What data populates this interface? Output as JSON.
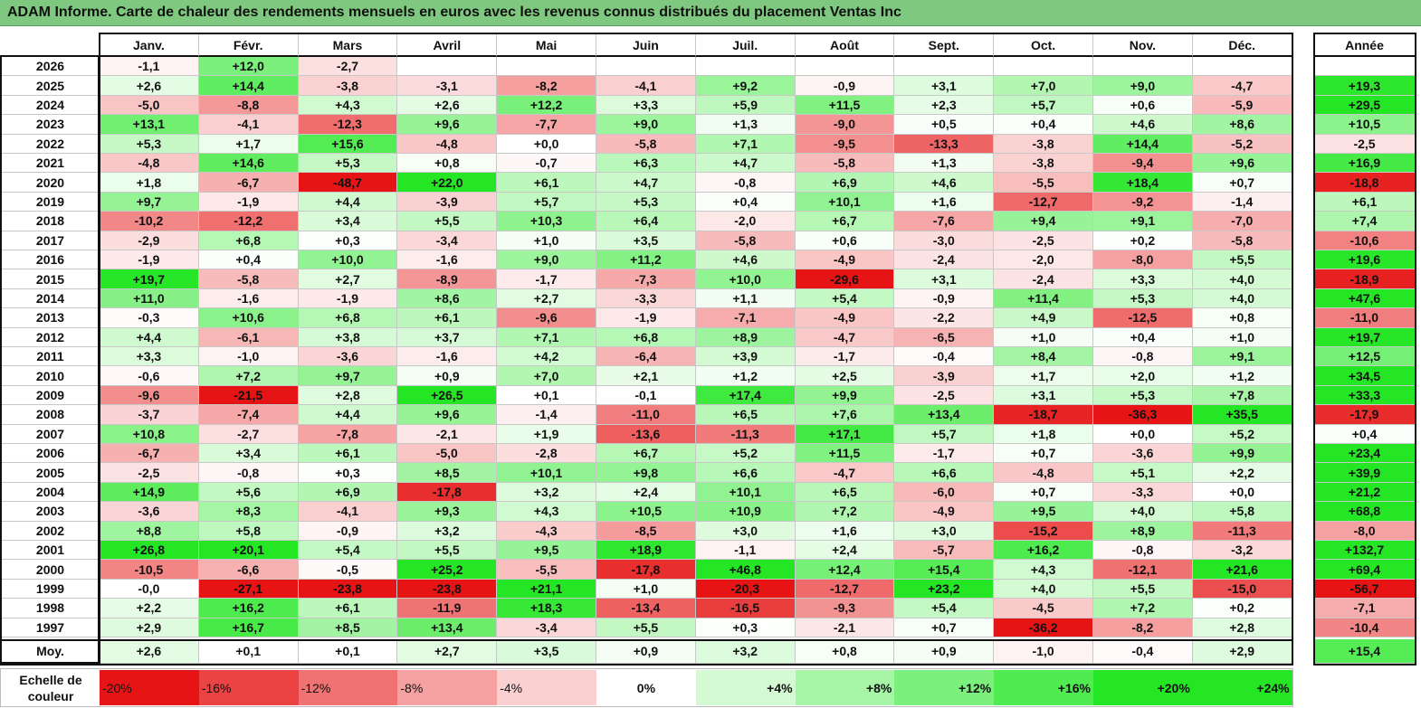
{
  "title": "ADAM Informe. Carte de chaleur des rendements mensuels en euros avec les revenus connus distribués du placement Ventas Inc",
  "chart_data": {
    "type": "heatmap",
    "months": [
      "Janv.",
      "Févr.",
      "Mars",
      "Avril",
      "Mai",
      "Juin",
      "Juil.",
      "Août",
      "Sept.",
      "Oct.",
      "Nov.",
      "Déc."
    ],
    "year_header": "Année",
    "avg_label": "Moy.",
    "rows": [
      {
        "year": "2026",
        "values": [
          "-1,1",
          "+12,0",
          "-2,7",
          "",
          "",
          "",
          "",
          "",
          "",
          "",
          "",
          ""
        ],
        "annual": ""
      },
      {
        "year": "2025",
        "values": [
          "+2,6",
          "+14,4",
          "-3,8",
          "-3,1",
          "-8,2",
          "-4,1",
          "+9,2",
          "-0,9",
          "+3,1",
          "+7,0",
          "+9,0",
          "-4,7"
        ],
        "annual": "+19,3"
      },
      {
        "year": "2024",
        "values": [
          "-5,0",
          "-8,8",
          "+4,3",
          "+2,6",
          "+12,2",
          "+3,3",
          "+5,9",
          "+11,5",
          "+2,3",
          "+5,7",
          "+0,6",
          "-5,9"
        ],
        "annual": "+29,5"
      },
      {
        "year": "2023",
        "values": [
          "+13,1",
          "-4,1",
          "-12,3",
          "+9,6",
          "-7,7",
          "+9,0",
          "+1,3",
          "-9,0",
          "+0,5",
          "+0,4",
          "+4,6",
          "+8,6"
        ],
        "annual": "+10,5"
      },
      {
        "year": "2022",
        "values": [
          "+5,3",
          "+1,7",
          "+15,6",
          "-4,8",
          "+0,0",
          "-5,8",
          "+7,1",
          "-9,5",
          "-13,3",
          "-3,8",
          "+14,4",
          "-5,2"
        ],
        "annual": "-2,5"
      },
      {
        "year": "2021",
        "values": [
          "-4,8",
          "+14,6",
          "+5,3",
          "+0,8",
          "-0,7",
          "+6,3",
          "+4,7",
          "-5,8",
          "+1,3",
          "-3,8",
          "-9,4",
          "+9,6"
        ],
        "annual": "+16,9"
      },
      {
        "year": "2020",
        "values": [
          "+1,8",
          "-6,7",
          "-48,7",
          "+22,0",
          "+6,1",
          "+4,7",
          "-0,8",
          "+6,9",
          "+4,6",
          "-5,5",
          "+18,4",
          "+0,7"
        ],
        "annual": "-18,8"
      },
      {
        "year": "2019",
        "values": [
          "+9,7",
          "-1,9",
          "+4,4",
          "-3,9",
          "+5,7",
          "+5,3",
          "+0,4",
          "+10,1",
          "+1,6",
          "-12,7",
          "-9,2",
          "-1,4"
        ],
        "annual": "+6,1"
      },
      {
        "year": "2018",
        "values": [
          "-10,2",
          "-12,2",
          "+3,4",
          "+5,5",
          "+10,3",
          "+6,4",
          "-2,0",
          "+6,7",
          "-7,6",
          "+9,4",
          "+9,1",
          "-7,0"
        ],
        "annual": "+7,4"
      },
      {
        "year": "2017",
        "values": [
          "-2,9",
          "+6,8",
          "+0,3",
          "-3,4",
          "+1,0",
          "+3,5",
          "-5,8",
          "+0,6",
          "-3,0",
          "-2,5",
          "+0,2",
          "-5,8"
        ],
        "annual": "-10,6"
      },
      {
        "year": "2016",
        "values": [
          "-1,9",
          "+0,4",
          "+10,0",
          "-1,6",
          "+9,0",
          "+11,2",
          "+4,6",
          "-4,9",
          "-2,4",
          "-2,0",
          "-8,0",
          "+5,5"
        ],
        "annual": "+19,6"
      },
      {
        "year": "2015",
        "values": [
          "+19,7",
          "-5,8",
          "+2,7",
          "-8,9",
          "-1,7",
          "-7,3",
          "+10,0",
          "-29,6",
          "+3,1",
          "-2,4",
          "+3,3",
          "+4,0"
        ],
        "annual": "-18,9"
      },
      {
        "year": "2014",
        "values": [
          "+11,0",
          "-1,6",
          "-1,9",
          "+8,6",
          "+2,7",
          "-3,3",
          "+1,1",
          "+5,4",
          "-0,9",
          "+11,4",
          "+5,3",
          "+4,0"
        ],
        "annual": "+47,6"
      },
      {
        "year": "2013",
        "values": [
          "-0,3",
          "+10,6",
          "+6,8",
          "+6,1",
          "-9,6",
          "-1,9",
          "-7,1",
          "-4,9",
          "-2,2",
          "+4,9",
          "-12,5",
          "+0,8"
        ],
        "annual": "-11,0"
      },
      {
        "year": "2012",
        "values": [
          "+4,4",
          "-6,1",
          "+3,8",
          "+3,7",
          "+7,1",
          "+6,8",
          "+8,9",
          "-4,7",
          "-6,5",
          "+1,0",
          "+0,4",
          "+1,0"
        ],
        "annual": "+19,7"
      },
      {
        "year": "2011",
        "values": [
          "+3,3",
          "-1,0",
          "-3,6",
          "-1,6",
          "+4,2",
          "-6,4",
          "+3,9",
          "-1,7",
          "-0,4",
          "+8,4",
          "-0,8",
          "+9,1"
        ],
        "annual": "+12,5"
      },
      {
        "year": "2010",
        "values": [
          "-0,6",
          "+7,2",
          "+9,7",
          "+0,9",
          "+7,0",
          "+2,1",
          "+1,2",
          "+2,5",
          "-3,9",
          "+1,7",
          "+2,0",
          "+1,2"
        ],
        "annual": "+34,5"
      },
      {
        "year": "2009",
        "values": [
          "-9,6",
          "-21,5",
          "+2,8",
          "+26,5",
          "+0,1",
          "-0,1",
          "+17,4",
          "+9,9",
          "-2,5",
          "+3,1",
          "+5,3",
          "+7,8"
        ],
        "annual": "+33,3"
      },
      {
        "year": "2008",
        "values": [
          "-3,7",
          "-7,4",
          "+4,4",
          "+9,6",
          "-1,4",
          "-11,0",
          "+6,5",
          "+7,6",
          "+13,4",
          "-18,7",
          "-36,3",
          "+35,5"
        ],
        "annual": "-17,9"
      },
      {
        "year": "2007",
        "values": [
          "+10,8",
          "-2,7",
          "-7,8",
          "-2,1",
          "+1,9",
          "-13,6",
          "-11,3",
          "+17,1",
          "+5,7",
          "+1,8",
          "+0,0",
          "+5,2"
        ],
        "annual": "+0,4"
      },
      {
        "year": "2006",
        "values": [
          "-6,7",
          "+3,4",
          "+6,1",
          "-5,0",
          "-2,8",
          "+6,7",
          "+5,2",
          "+11,5",
          "-1,7",
          "+0,7",
          "-3,6",
          "+9,9"
        ],
        "annual": "+23,4"
      },
      {
        "year": "2005",
        "values": [
          "-2,5",
          "-0,8",
          "+0,3",
          "+8,5",
          "+10,1",
          "+9,8",
          "+6,6",
          "-4,7",
          "+6,6",
          "-4,8",
          "+5,1",
          "+2,2"
        ],
        "annual": "+39,9"
      },
      {
        "year": "2004",
        "values": [
          "+14,9",
          "+5,6",
          "+6,9",
          "-17,8",
          "+3,2",
          "+2,4",
          "+10,1",
          "+6,5",
          "-6,0",
          "+0,7",
          "-3,3",
          "+0,0"
        ],
        "annual": "+21,2"
      },
      {
        "year": "2003",
        "values": [
          "-3,6",
          "+8,3",
          "-4,1",
          "+9,3",
          "+4,3",
          "+10,5",
          "+10,9",
          "+7,2",
          "-4,9",
          "+9,5",
          "+4,0",
          "+5,8"
        ],
        "annual": "+68,8"
      },
      {
        "year": "2002",
        "values": [
          "+8,8",
          "+5,8",
          "-0,9",
          "+3,2",
          "-4,3",
          "-8,5",
          "+3,0",
          "+1,6",
          "+3,0",
          "-15,2",
          "+8,9",
          "-11,3"
        ],
        "annual": "-8,0"
      },
      {
        "year": "2001",
        "values": [
          "+26,8",
          "+20,1",
          "+5,4",
          "+5,5",
          "+9,5",
          "+18,9",
          "-1,1",
          "+2,4",
          "-5,7",
          "+16,2",
          "-0,8",
          "-3,2"
        ],
        "annual": "+132,7"
      },
      {
        "year": "2000",
        "values": [
          "-10,5",
          "-6,6",
          "-0,5",
          "+25,2",
          "-5,5",
          "-17,8",
          "+46,8",
          "+12,4",
          "+15,4",
          "+4,3",
          "-12,1",
          "+21,6"
        ],
        "annual": "+69,4"
      },
      {
        "year": "1999",
        "values": [
          "-0,0",
          "-27,1",
          "-23,8",
          "-23,8",
          "+21,1",
          "+1,0",
          "-20,3",
          "-12,7",
          "+23,2",
          "+4,0",
          "+5,5",
          "-15,0"
        ],
        "annual": "-56,7"
      },
      {
        "year": "1998",
        "values": [
          "+2,2",
          "+16,2",
          "+6,1",
          "-11,9",
          "+18,3",
          "-13,4",
          "-16,5",
          "-9,3",
          "+5,4",
          "-4,5",
          "+7,2",
          "+0,2"
        ],
        "annual": "-7,1"
      },
      {
        "year": "1997",
        "values": [
          "+2,9",
          "+16,7",
          "+8,5",
          "+13,4",
          "-3,4",
          "+5,5",
          "+0,3",
          "-2,1",
          "+0,7",
          "-36,2",
          "-8,2",
          "+2,8"
        ],
        "annual": "-10,4"
      }
    ],
    "averages": {
      "values": [
        "+2,6",
        "+0,1",
        "+0,1",
        "+2,7",
        "+3,5",
        "+0,9",
        "+3,2",
        "+0,8",
        "+0,9",
        "-1,0",
        "-0,4",
        "+2,9"
      ],
      "annual": "+15,4"
    },
    "scale": {
      "label": "Echelle de couleur",
      "stops": [
        {
          "label": "-20%",
          "value": -20
        },
        {
          "label": "-16%",
          "value": -16
        },
        {
          "label": "-12%",
          "value": -12
        },
        {
          "label": "-8%",
          "value": -8
        },
        {
          "label": "-4%",
          "value": -4
        },
        {
          "label": "0%",
          "value": 0
        },
        {
          "label": "+4%",
          "value": 4
        },
        {
          "label": "+8%",
          "value": 8
        },
        {
          "label": "+12%",
          "value": 12
        },
        {
          "label": "+16%",
          "value": 16
        },
        {
          "label": "+20%",
          "value": 20
        },
        {
          "label": "+24%",
          "value": 24
        }
      ]
    }
  }
}
